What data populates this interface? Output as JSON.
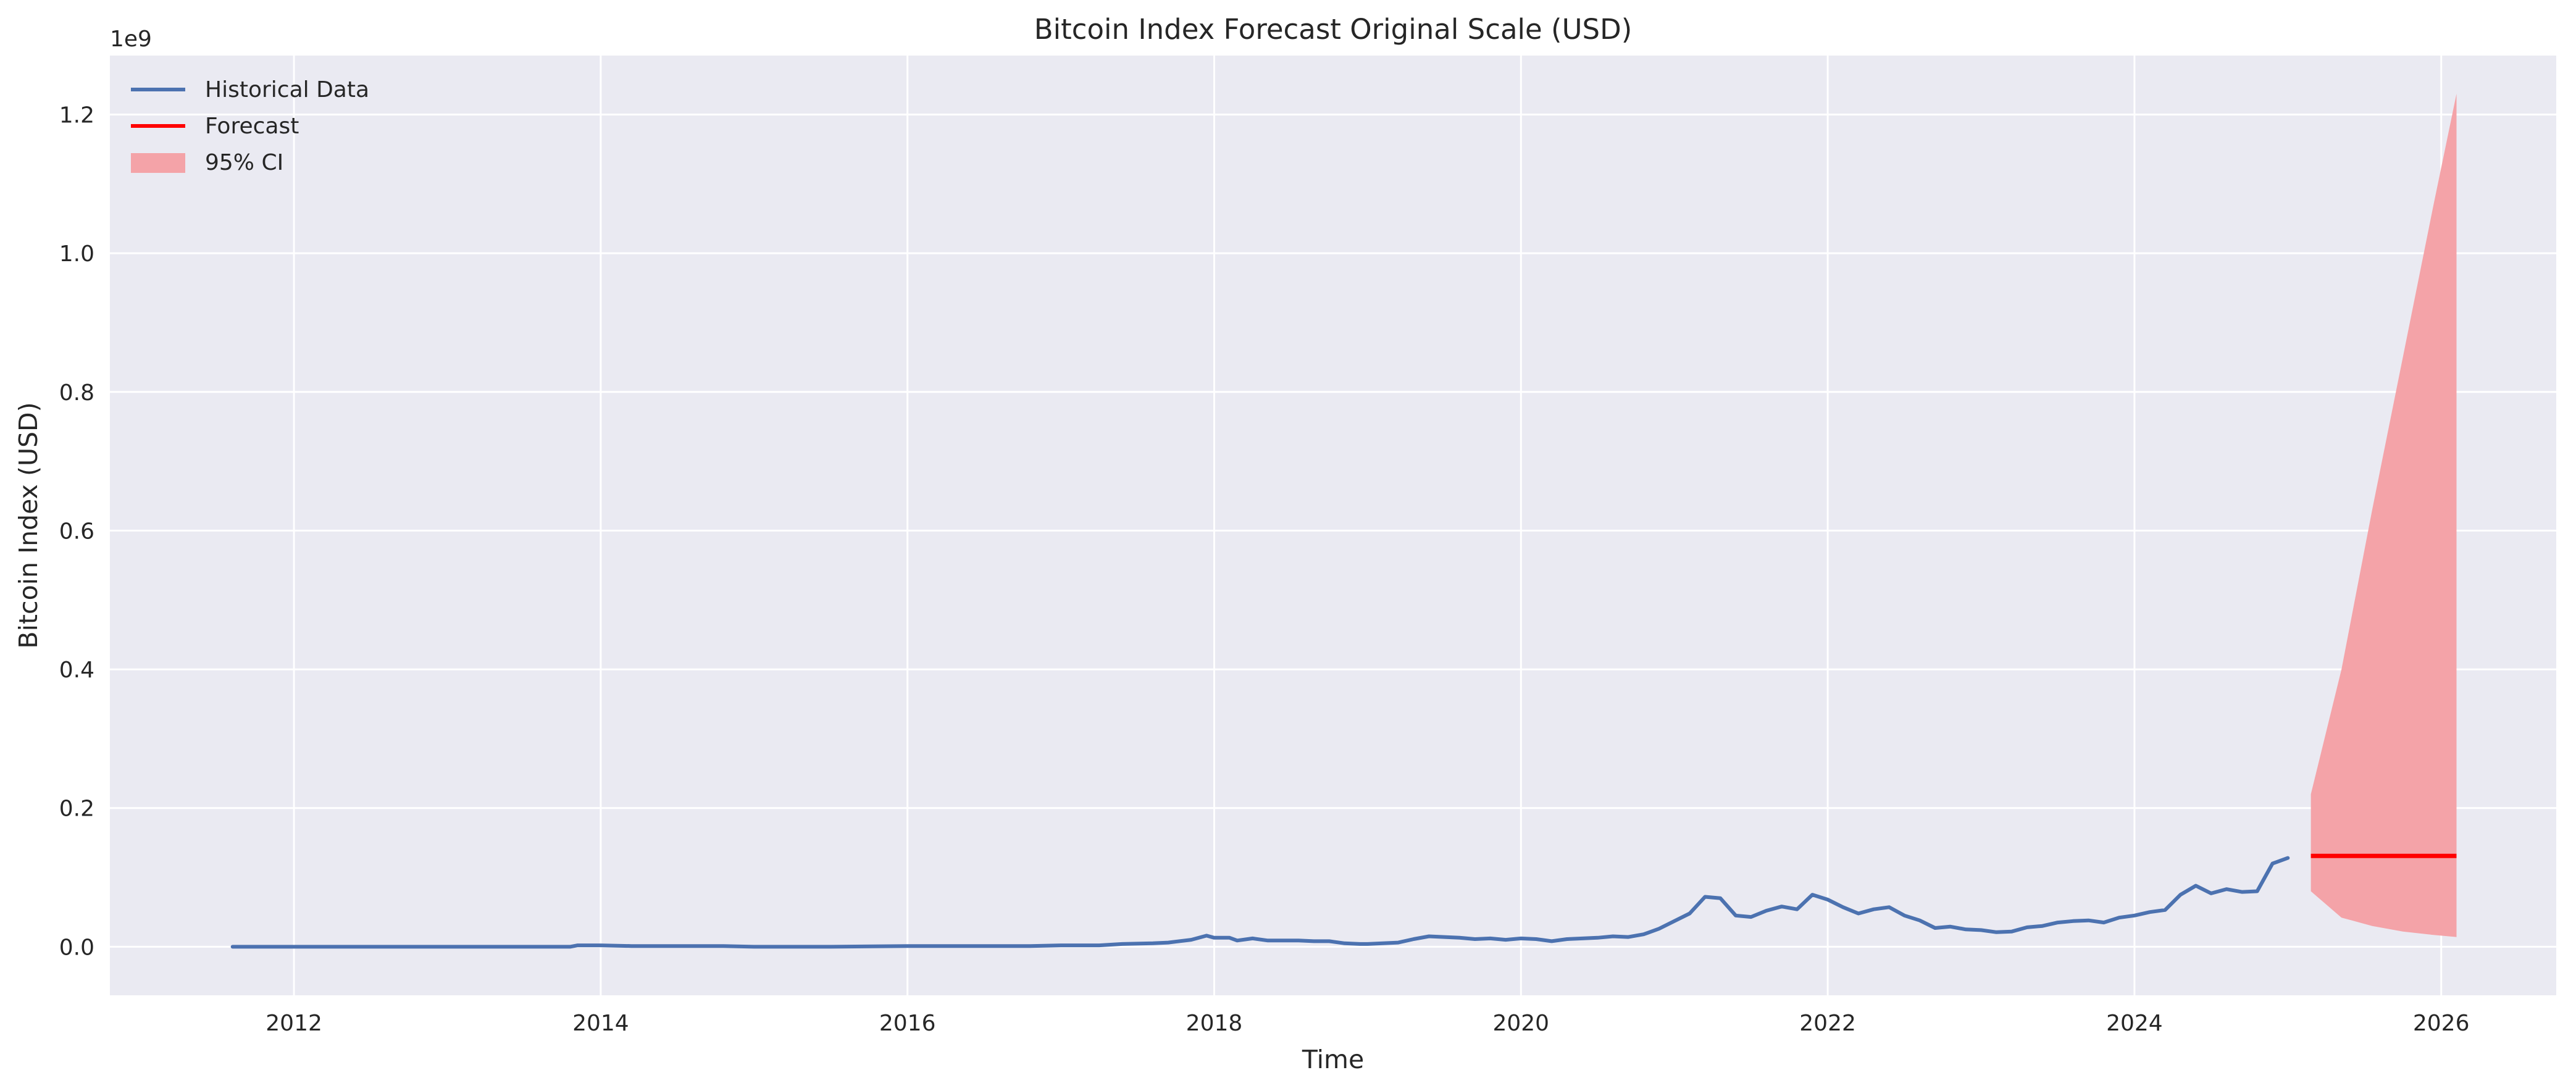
{
  "chart_data": {
    "type": "line",
    "title": "Bitcoin Index Forecast Original Scale (USD)",
    "xlabel": "Time",
    "ylabel": "Bitcoin Index (USD)",
    "y_offset_label": "1e9",
    "y_scale_multiplier": 1000000000,
    "xlim": [
      2010.8,
      2026.75
    ],
    "ylim": [
      -0.07,
      1.285
    ],
    "x_ticks": [
      2012,
      2014,
      2016,
      2018,
      2020,
      2022,
      2024,
      2026
    ],
    "x_tick_labels": [
      "2012",
      "2014",
      "2016",
      "2018",
      "2020",
      "2022",
      "2024",
      "2026"
    ],
    "y_ticks": [
      0.0,
      0.2,
      0.4,
      0.6,
      0.8,
      1.0,
      1.2
    ],
    "y_tick_labels": [
      "0.0",
      "0.2",
      "0.4",
      "0.6",
      "0.8",
      "1.0",
      "1.2"
    ],
    "grid": true,
    "legend_position": "top-left",
    "colors": {
      "plot_background": "#eaeaf2",
      "grid": "#ffffff",
      "historical": "#4c72b0",
      "forecast": "#ff0000",
      "ci": "#f4a3a8"
    },
    "series": [
      {
        "name": "Historical Data",
        "kind": "line",
        "x": [
          2011.6,
          2011.8,
          2012.0,
          2012.3,
          2012.6,
          2013.0,
          2013.3,
          2013.6,
          2013.8,
          2013.85,
          2014.0,
          2014.2,
          2014.5,
          2014.8,
          2015.0,
          2015.5,
          2016.0,
          2016.5,
          2016.8,
          2017.0,
          2017.25,
          2017.4,
          2017.6,
          2017.7,
          2017.85,
          2017.95,
          2018.0,
          2018.1,
          2018.15,
          2018.25,
          2018.35,
          2018.45,
          2018.55,
          2018.65,
          2018.75,
          2018.85,
          2018.95,
          2019.0,
          2019.1,
          2019.2,
          2019.3,
          2019.4,
          2019.5,
          2019.6,
          2019.7,
          2019.8,
          2019.9,
          2020.0,
          2020.1,
          2020.2,
          2020.3,
          2020.4,
          2020.5,
          2020.6,
          2020.7,
          2020.8,
          2020.9,
          2021.0,
          2021.1,
          2021.2,
          2021.3,
          2021.4,
          2021.5,
          2021.6,
          2021.7,
          2021.8,
          2021.9,
          2022.0,
          2022.1,
          2022.2,
          2022.3,
          2022.4,
          2022.5,
          2022.6,
          2022.7,
          2022.8,
          2022.9,
          2023.0,
          2023.1,
          2023.2,
          2023.3,
          2023.4,
          2023.5,
          2023.6,
          2023.7,
          2023.8,
          2023.9,
          2024.0,
          2024.1,
          2024.2,
          2024.3,
          2024.4,
          2024.5,
          2024.6,
          2024.7,
          2024.8,
          2024.9,
          2025.0
        ],
        "y": [
          0.0,
          0.0,
          0.0,
          0.0,
          0.0,
          0.0,
          0.0,
          0.0,
          0.0,
          0.002,
          0.002,
          0.001,
          0.001,
          0.001,
          0.0,
          0.0,
          0.001,
          0.001,
          0.001,
          0.002,
          0.002,
          0.004,
          0.005,
          0.006,
          0.01,
          0.016,
          0.013,
          0.013,
          0.009,
          0.012,
          0.009,
          0.009,
          0.009,
          0.008,
          0.008,
          0.005,
          0.004,
          0.004,
          0.005,
          0.006,
          0.011,
          0.015,
          0.014,
          0.013,
          0.011,
          0.012,
          0.01,
          0.012,
          0.011,
          0.008,
          0.011,
          0.012,
          0.013,
          0.015,
          0.014,
          0.018,
          0.026,
          0.037,
          0.048,
          0.072,
          0.07,
          0.045,
          0.043,
          0.052,
          0.058,
          0.054,
          0.075,
          0.068,
          0.057,
          0.048,
          0.054,
          0.057,
          0.045,
          0.038,
          0.027,
          0.029,
          0.025,
          0.024,
          0.021,
          0.022,
          0.028,
          0.03,
          0.035,
          0.037,
          0.038,
          0.035,
          0.042,
          0.045,
          0.05,
          0.053,
          0.075,
          0.088,
          0.077,
          0.083,
          0.079,
          0.08,
          0.12,
          0.128
        ]
      },
      {
        "name": "Forecast",
        "kind": "line",
        "x": [
          2025.15,
          2026.1
        ],
        "y": [
          0.131,
          0.131
        ]
      },
      {
        "name": "95% CI",
        "kind": "band",
        "x": [
          2025.15,
          2025.35,
          2025.55,
          2025.75,
          2025.95,
          2026.1
        ],
        "lower": [
          0.08,
          0.042,
          0.03,
          0.022,
          0.017,
          0.014
        ],
        "upper": [
          0.22,
          0.4,
          0.63,
          0.85,
          1.07,
          1.23
        ]
      }
    ]
  }
}
